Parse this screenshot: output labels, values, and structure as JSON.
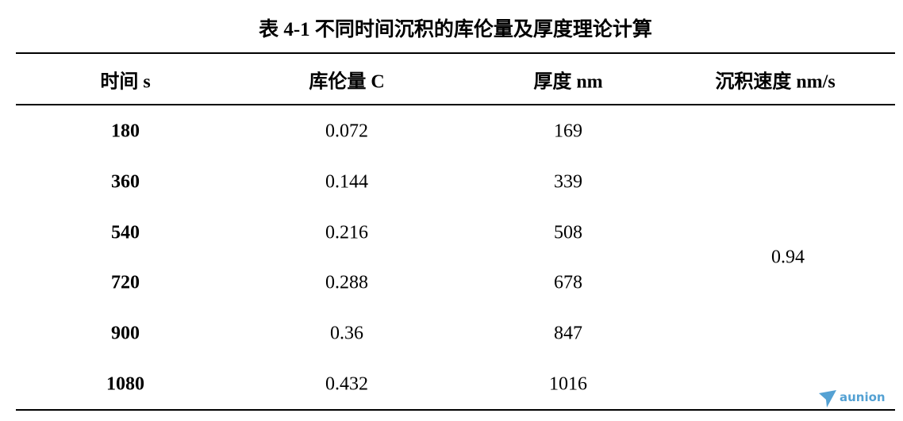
{
  "table": {
    "title": "表 4-1 不同时间沉积的库伦量及厚度理论计算",
    "headers": [
      "时间 s",
      "库伦量 C",
      "厚度 nm",
      "沉积速度 nm/s"
    ],
    "rows": [
      [
        "180",
        "0.072",
        "169"
      ],
      [
        "360",
        "0.144",
        "339"
      ],
      [
        "540",
        "0.216",
        "508"
      ],
      [
        "720",
        "0.288",
        "678"
      ],
      [
        "900",
        "0.36",
        "847"
      ],
      [
        "1080",
        "0.432",
        "1016"
      ]
    ],
    "merged_rate": "0.94"
  },
  "watermark": "aunion"
}
